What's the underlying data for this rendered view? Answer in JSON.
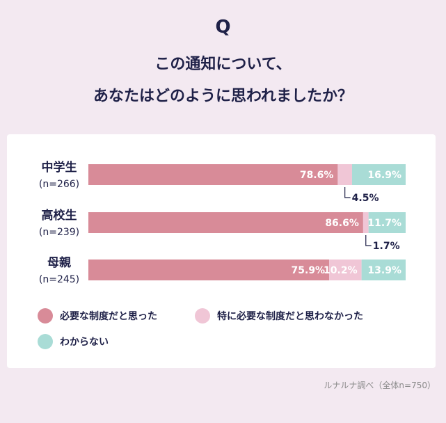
{
  "header": {
    "q_mark": "Q",
    "title_line1": "この通知について、",
    "title_line2": "あなたはどのように思われましたか？"
  },
  "colors": {
    "necessary": "#d88b98",
    "not_especially": "#f0c6d6",
    "unknown": "#a9dcd6"
  },
  "chart_data": {
    "type": "bar",
    "orientation": "horizontal",
    "stacked": "percent",
    "title": "この通知について、あなたはどのように思われましたか？",
    "categories": [
      "中学生",
      "高校生",
      "母親"
    ],
    "category_sublabels": [
      "(n=266)",
      "(n=239)",
      "(n=245)"
    ],
    "series": [
      {
        "name": "必要な制度だと思った",
        "values": [
          78.6,
          86.6,
          75.9
        ]
      },
      {
        "name": "特に必要な制度だと思わなかった",
        "values": [
          4.5,
          1.7,
          10.2
        ]
      },
      {
        "name": "わからない",
        "values": [
          16.9,
          11.7,
          13.9
        ]
      }
    ],
    "value_labels": [
      [
        "78.6%",
        "4.5%",
        "16.9%"
      ],
      [
        "86.6%",
        "1.7%",
        "11.7%"
      ],
      [
        "75.9%",
        "10.2%",
        "13.9%"
      ]
    ],
    "xlim": [
      0,
      100
    ],
    "legend_position": "bottom",
    "grid": false
  },
  "legend": {
    "items": [
      "必要な制度だと思った",
      "特に必要な制度だと思わなかった",
      "わからない"
    ]
  },
  "footer": {
    "source": "ルナルナ調べ（全体n=750）"
  }
}
